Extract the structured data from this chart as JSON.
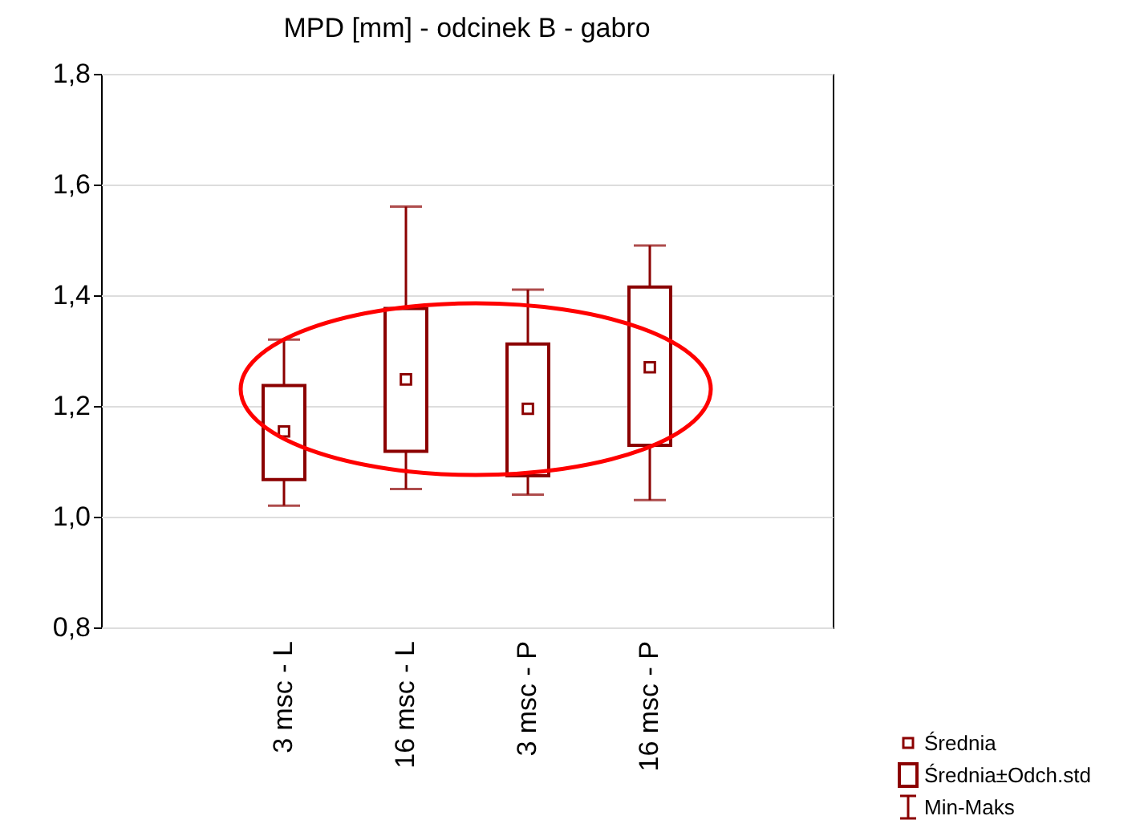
{
  "chart_data": {
    "type": "box",
    "title": "MPD [mm] - odcinek B - gabro",
    "categories": [
      "3 msc - L",
      "16 msc - L",
      "3 msc - P",
      "16 msc - P"
    ],
    "boxes": [
      {
        "low": 1.02,
        "q1": 1.067,
        "q3": 1.237,
        "high": 1.32,
        "mean": 1.154
      },
      {
        "low": 1.05,
        "q1": 1.118,
        "q3": 1.376,
        "high": 1.56,
        "mean": 1.248
      },
      {
        "low": 1.04,
        "q1": 1.074,
        "q3": 1.312,
        "high": 1.41,
        "mean": 1.195
      },
      {
        "low": 1.03,
        "q1": 1.129,
        "q3": 1.415,
        "high": 1.49,
        "mean": 1.27
      }
    ],
    "color": "#8b0000",
    "ylim": [
      0.8,
      1.8
    ],
    "yticks": [
      {
        "value": 0.8,
        "label": "0,8"
      },
      {
        "value": 1.0,
        "label": "1,0"
      },
      {
        "value": 1.2,
        "label": "1,2"
      },
      {
        "value": 1.4,
        "label": "1,4"
      },
      {
        "value": 1.6,
        "label": "1,6"
      },
      {
        "value": 1.8,
        "label": "1,8"
      }
    ],
    "grid": "y",
    "annotations": [
      "Średnia",
      "Średnia±Odch.std",
      "Min-Maks"
    ]
  }
}
